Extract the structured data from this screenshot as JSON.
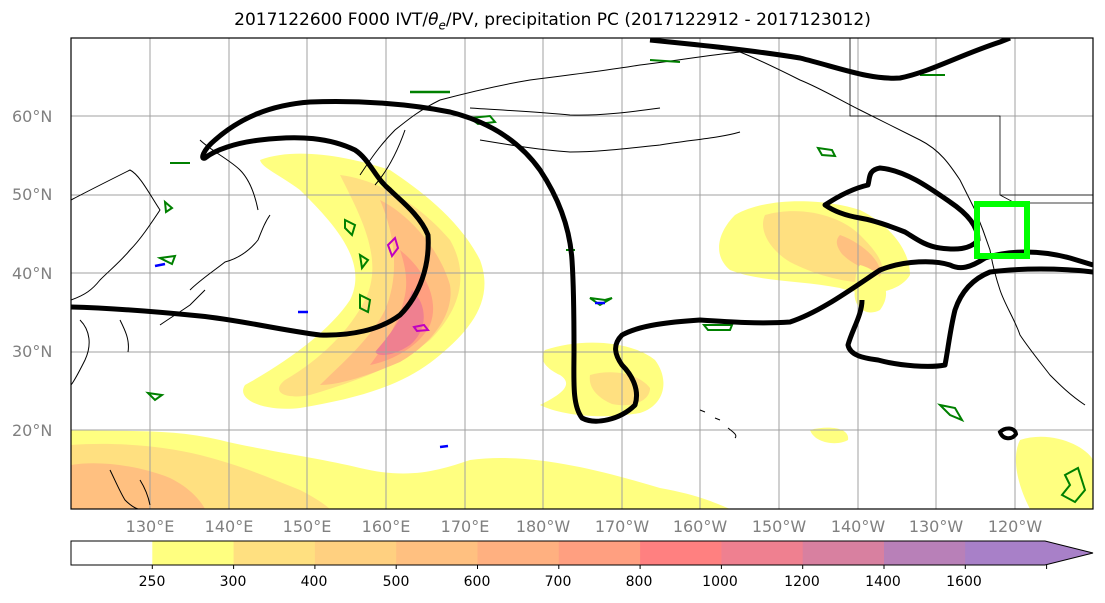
{
  "title_main": "2017122600 F000 IVT/",
  "title_theta": "θ",
  "title_sub": "e",
  "title_rest": "/PV, precipitation PC (2017122912 - 2017123012)",
  "lat_labels": [
    "60°N",
    "50°N",
    "40°N",
    "30°N",
    "20°N"
  ],
  "lon_labels": [
    "130°E",
    "140°E",
    "150°E",
    "160°E",
    "170°E",
    "180°W",
    "170°W",
    "160°W",
    "150°W",
    "140°W",
    "130°W",
    "120°W"
  ],
  "colorbar": {
    "levels": [
      "250",
      "300",
      "400",
      "500",
      "600",
      "700",
      "800",
      "1000",
      "1200",
      "1400",
      "1600"
    ],
    "colors": [
      "#ffffff",
      "#ffff80",
      "#ffe080",
      "#ffd080",
      "#ffc080",
      "#ffb080",
      "#ff9f80",
      "#ff8080",
      "#ef8090",
      "#d880a0",
      "#b880b8",
      "#a880c8"
    ]
  },
  "contour_colors": {
    "pv_line": "#000000",
    "theta_e": "#008000",
    "negative": "#0000ff",
    "high": "#c000c0",
    "target_box": "#00ff00"
  }
}
